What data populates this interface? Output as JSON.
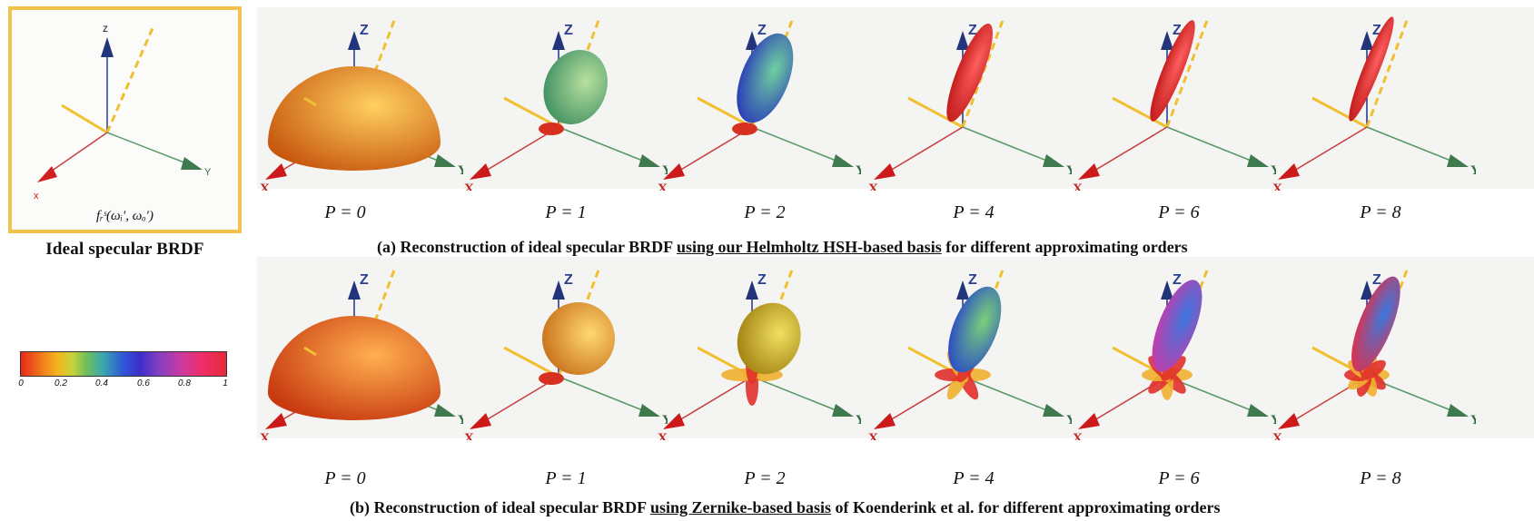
{
  "reference": {
    "formula": "fᵣˢ(ωᵢ′, ωₒ′)",
    "caption": "Ideal specular BRDF",
    "axis_x": "x",
    "axis_y": "Y",
    "axis_z": "z"
  },
  "colorbar": {
    "ticks": [
      "0",
      "0.2",
      "0.4",
      "0.6",
      "0.8",
      "1"
    ],
    "colors": [
      "#e8271a",
      "#f4b51e",
      "#6fbf5a",
      "#2f55d8",
      "#8a3fc0",
      "#e82838"
    ]
  },
  "axes": {
    "x": "X",
    "y": "Y",
    "z": "Z"
  },
  "row_a": {
    "labels": [
      "P = 0",
      "P = 1",
      "P = 2",
      "P = 4",
      "P = 6",
      "P = 8"
    ],
    "caption_pre": "(a) Reconstruction of ideal specular BRDF ",
    "caption_link": "using our Helmholtz HSH-based basis",
    "caption_post": " for different approximating orders"
  },
  "row_b": {
    "labels": [
      "P = 0",
      "P = 1",
      "P = 2",
      "P = 4",
      "P = 6",
      "P = 8"
    ],
    "caption_pre": "(b) Reconstruction of ideal specular BRDF ",
    "caption_link": "using Zernike-based basis",
    "caption_post": "  of Koenderink et al. for different approximating orders"
  }
}
